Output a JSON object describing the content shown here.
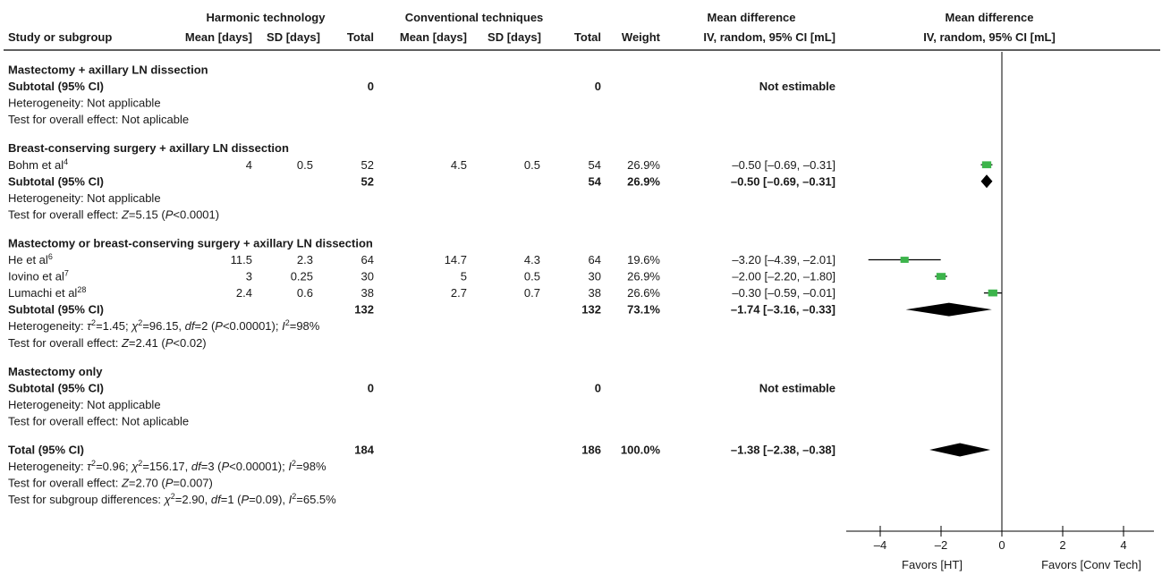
{
  "chart_data": {
    "type": "forest",
    "colors": {
      "point": "#3cb44b",
      "diamond": "#000000",
      "line": "#000000"
    },
    "headers": {
      "group_harmonic": "Harmonic technology",
      "group_conventional": "Conventional techniques",
      "group_md_text": "Mean difference",
      "group_md_plot": "Mean difference",
      "study": "Study or subgroup",
      "mean_ht": "Mean [days]",
      "sd_ht": "SD [days]",
      "total_ht": "Total",
      "mean_ct": "Mean [days]",
      "sd_ct": "SD [days]",
      "total_ct": "Total",
      "weight": "Weight",
      "ci_text": "IV, random, 95% CI [mL]",
      "ci_plot": "IV, random, 95% CI [mL]"
    },
    "rows": [
      {
        "kind": "heading",
        "label": "Mastectomy + axillary LN dissection"
      },
      {
        "kind": "subtotal",
        "label": "Subtotal (95% CI)",
        "n_ht": "0",
        "n_ct": "0",
        "weight": "",
        "ci_text": "Not estimable"
      },
      {
        "kind": "note",
        "parts": [
          [
            "Heterogeneity: Not applicable",
            ""
          ]
        ]
      },
      {
        "kind": "note",
        "parts": [
          [
            "Test for overall effect: Not aplicable",
            ""
          ]
        ]
      },
      {
        "kind": "gap"
      },
      {
        "kind": "heading",
        "label": "Breast-conserving surgery + axillary LN dissection"
      },
      {
        "kind": "study",
        "label": "Bohm et al",
        "ref": "4",
        "mean_ht": "4",
        "sd_ht": "0.5",
        "n_ht": "52",
        "mean_ct": "4.5",
        "sd_ct": "0.5",
        "n_ct": "54",
        "weight": "26.9%",
        "ci_text": "–0.50 [–0.69, –0.31]",
        "est": -0.5,
        "lo": -0.69,
        "hi": -0.31,
        "w": 26.9
      },
      {
        "kind": "subtotal",
        "label": "Subtotal (95% CI)",
        "n_ht": "52",
        "n_ct": "54",
        "weight": "26.9%",
        "ci_text": "–0.50 [–0.69, –0.31]",
        "est": -0.5,
        "lo": -0.69,
        "hi": -0.31
      },
      {
        "kind": "note",
        "parts": [
          [
            "Heterogeneity: Not applicable",
            ""
          ]
        ]
      },
      {
        "kind": "note",
        "parts": [
          [
            "Test for overall effect: ",
            ""
          ],
          [
            "Z",
            "i"
          ],
          [
            "=5.15 (",
            ""
          ],
          [
            "P",
            "i"
          ],
          [
            "<0.0001)",
            ""
          ]
        ]
      },
      {
        "kind": "gap"
      },
      {
        "kind": "heading",
        "label": "Mastectomy or breast-conserving surgery + axillary LN dissection"
      },
      {
        "kind": "study",
        "label": "He et al",
        "ref": "6",
        "mean_ht": "11.5",
        "sd_ht": "2.3",
        "n_ht": "64",
        "mean_ct": "14.7",
        "sd_ct": "4.3",
        "n_ct": "64",
        "weight": "19.6%",
        "ci_text": "–3.20 [–4.39, –2.01]",
        "est": -3.2,
        "lo": -4.39,
        "hi": -2.01,
        "w": 19.6
      },
      {
        "kind": "study",
        "label": "Iovino et al",
        "ref": "7",
        "mean_ht": "3",
        "sd_ht": "0.25",
        "n_ht": "30",
        "mean_ct": "5",
        "sd_ct": "0.5",
        "n_ct": "30",
        "weight": "26.9%",
        "ci_text": "–2.00 [–2.20, –1.80]",
        "est": -2.0,
        "lo": -2.2,
        "hi": -1.8,
        "w": 26.9
      },
      {
        "kind": "study",
        "label": "Lumachi et al",
        "ref": "28",
        "mean_ht": "2.4",
        "sd_ht": "0.6",
        "n_ht": "38",
        "mean_ct": "2.7",
        "sd_ct": "0.7",
        "n_ct": "38",
        "weight": "26.6%",
        "ci_text": "–0.30 [–0.59, –0.01]",
        "est": -0.3,
        "lo": -0.59,
        "hi": -0.01,
        "w": 26.6
      },
      {
        "kind": "subtotal",
        "label": "Subtotal (95% CI)",
        "n_ht": "132",
        "n_ct": "132",
        "weight": "73.1%",
        "ci_text": "–1.74 [–3.16, –0.33]",
        "est": -1.74,
        "lo": -3.16,
        "hi": -0.33
      },
      {
        "kind": "note",
        "parts": [
          [
            "Heterogeneity: ",
            ""
          ],
          [
            "τ",
            "i"
          ],
          [
            "2",
            "sup"
          ],
          [
            "=1.45; ",
            ""
          ],
          [
            "χ",
            "i"
          ],
          [
            "2",
            "sup"
          ],
          [
            "=96.15, ",
            ""
          ],
          [
            "df",
            "i"
          ],
          [
            "=2 (",
            ""
          ],
          [
            "P",
            "i"
          ],
          [
            "<0.00001); ",
            ""
          ],
          [
            "I",
            "i"
          ],
          [
            "2",
            "sup"
          ],
          [
            "=98%",
            ""
          ]
        ]
      },
      {
        "kind": "note",
        "parts": [
          [
            "Test for overall effect: ",
            ""
          ],
          [
            "Z",
            "i"
          ],
          [
            "=2.41 (",
            ""
          ],
          [
            "P",
            "i"
          ],
          [
            "<0.02)",
            ""
          ]
        ]
      },
      {
        "kind": "gap"
      },
      {
        "kind": "heading",
        "label": "Mastectomy only"
      },
      {
        "kind": "subtotal",
        "label": "Subtotal (95% CI)",
        "n_ht": "0",
        "n_ct": "0",
        "weight": "",
        "ci_text": "Not estimable"
      },
      {
        "kind": "note",
        "parts": [
          [
            "Heterogeneity: Not applicable",
            ""
          ]
        ]
      },
      {
        "kind": "note",
        "parts": [
          [
            "Test for overall effect: Not aplicable",
            ""
          ]
        ]
      },
      {
        "kind": "gap"
      },
      {
        "kind": "subtotal",
        "label": "Total (95% CI)",
        "n_ht": "184",
        "n_ct": "186",
        "weight": "100.0%",
        "ci_text": "–1.38 [–2.38, –0.38]",
        "est": -1.38,
        "lo": -2.38,
        "hi": -0.38
      },
      {
        "kind": "note",
        "parts": [
          [
            "Heterogeneity: ",
            ""
          ],
          [
            "τ",
            "i"
          ],
          [
            "2",
            "sup"
          ],
          [
            "=0.96; ",
            ""
          ],
          [
            "χ",
            "i"
          ],
          [
            "2",
            "sup"
          ],
          [
            "=156.17, ",
            ""
          ],
          [
            "df",
            "i"
          ],
          [
            "=3 (",
            ""
          ],
          [
            "P",
            "i"
          ],
          [
            "<0.00001); ",
            ""
          ],
          [
            "I",
            "i"
          ],
          [
            "2",
            "sup"
          ],
          [
            "=98%",
            ""
          ]
        ]
      },
      {
        "kind": "note",
        "parts": [
          [
            "Test for overall effect: ",
            ""
          ],
          [
            "Z",
            "i"
          ],
          [
            "=2.70 (",
            ""
          ],
          [
            "P",
            "i"
          ],
          [
            "=0.007)",
            ""
          ]
        ]
      },
      {
        "kind": "note",
        "parts": [
          [
            "Test for subgroup differences: ",
            ""
          ],
          [
            "χ",
            "i"
          ],
          [
            "2",
            "sup"
          ],
          [
            "=2.90, ",
            ""
          ],
          [
            "df",
            "i"
          ],
          [
            "=1 (",
            ""
          ],
          [
            "P",
            "i"
          ],
          [
            "=0.09), ",
            ""
          ],
          [
            "I",
            "i"
          ],
          [
            "2",
            "sup"
          ],
          [
            "=65.5%",
            ""
          ]
        ]
      }
    ],
    "x_axis": {
      "range": [
        -5,
        5
      ],
      "ticks": [
        -4,
        -2,
        0,
        2,
        4
      ],
      "tick_labels": [
        "–4",
        "–2",
        "0",
        "2",
        "4"
      ],
      "left_label": "Favors [HT]",
      "right_label": "Favors [Conv Tech]"
    }
  }
}
